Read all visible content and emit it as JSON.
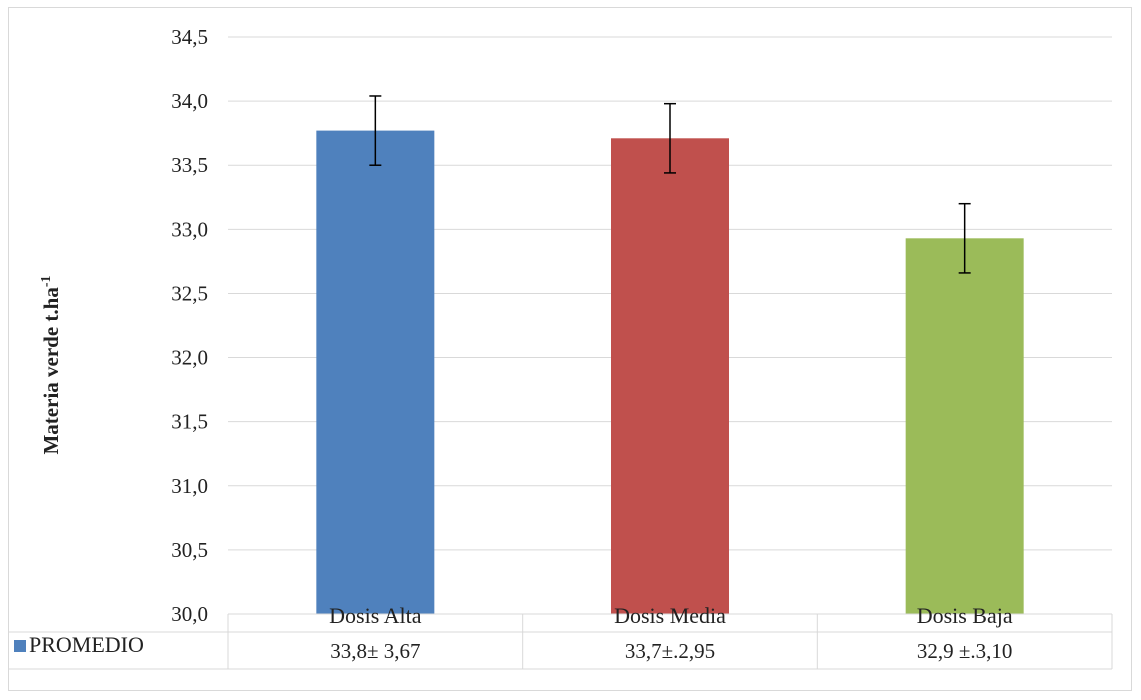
{
  "chart_data": {
    "type": "bar",
    "title": "",
    "xlabel": "",
    "ylabel": "Materia verde t.ha",
    "ylabel_superscript": "-1",
    "ylim": [
      30.0,
      34.5
    ],
    "yticks": [
      "30,0",
      "30,5",
      "31,0",
      "31,5",
      "32,0",
      "32,5",
      "33,0",
      "33,5",
      "34,0",
      "34,5"
    ],
    "ytick_values": [
      30.0,
      30.5,
      31.0,
      31.5,
      32.0,
      32.5,
      33.0,
      33.5,
      34.0,
      34.5
    ],
    "grid": true,
    "categories": [
      "Dosis Alta",
      "Dosis Media",
      "Dosis Baja"
    ],
    "series": [
      {
        "name": "PROMEDIO",
        "values": [
          33.77,
          33.71,
          32.93
        ],
        "error": [
          0.27,
          0.27,
          0.27
        ],
        "colors": [
          "#4f81bd",
          "#c0504d",
          "#9bbb59"
        ],
        "table_labels": [
          "33,8± 3,67",
          "33,7±.2,95",
          "32,9 ±.3,10"
        ]
      }
    ],
    "legend": "data table (bottom-left)",
    "legend_color": "#4f81bd"
  }
}
